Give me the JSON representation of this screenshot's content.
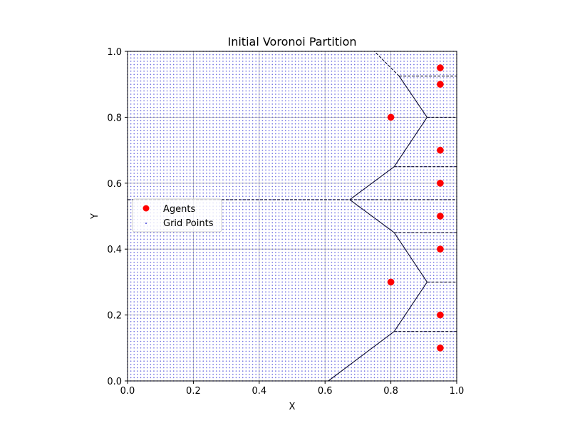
{
  "chart_data": {
    "type": "scatter",
    "title": "Initial Voronoi Partition",
    "xlabel": "X",
    "ylabel": "Y",
    "xlim": [
      0.0,
      1.0
    ],
    "ylim": [
      0.0,
      1.0
    ],
    "xticks": [
      "0.0",
      "0.2",
      "0.4",
      "0.6",
      "0.8",
      "1.0"
    ],
    "yticks": [
      "0.0",
      "0.2",
      "0.4",
      "0.6",
      "0.8",
      "1.0"
    ],
    "grid": true,
    "legend_position": "center-left",
    "series": [
      {
        "name": "Agents",
        "color": "#ff0000",
        "marker": "circle",
        "points": [
          [
            0.95,
            0.95
          ],
          [
            0.95,
            0.9
          ],
          [
            0.8,
            0.8
          ],
          [
            0.95,
            0.7
          ],
          [
            0.95,
            0.6
          ],
          [
            0.95,
            0.5
          ],
          [
            0.95,
            0.4
          ],
          [
            0.8,
            0.3
          ],
          [
            0.95,
            0.2
          ],
          [
            0.95,
            0.1
          ]
        ]
      },
      {
        "name": "Grid Points",
        "color": "#4040d8",
        "marker": "dot",
        "grid_spacing": 0.01
      }
    ],
    "voronoi_edges": {
      "solid": [
        [
          [
            0.61,
            0.0
          ],
          [
            0.81,
            0.15
          ]
        ],
        [
          [
            0.81,
            0.15
          ],
          [
            0.91,
            0.3
          ]
        ],
        [
          [
            0.91,
            0.3
          ],
          [
            0.81,
            0.45
          ]
        ],
        [
          [
            0.81,
            0.45
          ],
          [
            0.675,
            0.55
          ]
        ],
        [
          [
            0.675,
            0.55
          ],
          [
            0.81,
            0.65
          ]
        ],
        [
          [
            0.81,
            0.65
          ],
          [
            0.91,
            0.8
          ]
        ],
        [
          [
            0.91,
            0.8
          ],
          [
            0.825,
            0.925
          ]
        ]
      ],
      "dashed": [
        [
          [
            0.0,
            0.55
          ],
          [
            0.675,
            0.55
          ]
        ],
        [
          [
            0.675,
            0.55
          ],
          [
            1.0,
            0.55
          ]
        ],
        [
          [
            0.81,
            0.15
          ],
          [
            1.0,
            0.15
          ]
        ],
        [
          [
            0.91,
            0.3
          ],
          [
            1.0,
            0.3
          ]
        ],
        [
          [
            0.81,
            0.45
          ],
          [
            1.0,
            0.45
          ]
        ],
        [
          [
            0.81,
            0.65
          ],
          [
            1.0,
            0.65
          ]
        ],
        [
          [
            0.91,
            0.8
          ],
          [
            1.0,
            0.8
          ]
        ],
        [
          [
            0.825,
            0.925
          ],
          [
            1.0,
            0.925
          ]
        ],
        [
          [
            0.825,
            0.925
          ],
          [
            0.75,
            1.0
          ]
        ]
      ],
      "color": "#0a0a30"
    }
  }
}
